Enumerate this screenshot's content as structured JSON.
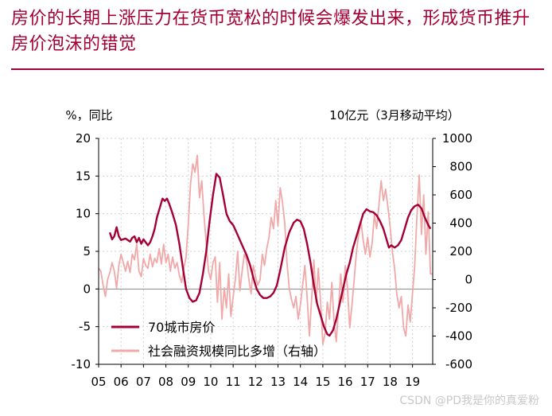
{
  "title": "房价的长期上涨压力在货币宽松的时候会爆发出来，形成货币推升房价泡沫的错觉",
  "watermark": "CSDN @PD我是你的真爱粉",
  "chart_data": {
    "type": "line",
    "left_axis_label": "%，同比",
    "right_axis_label": "10亿元（3月移动平均）",
    "x_ticks": [
      "05",
      "06",
      "07",
      "08",
      "09",
      "10",
      "11",
      "12",
      "13",
      "14",
      "15",
      "16",
      "17",
      "18",
      "19"
    ],
    "x_range": [
      2005.0,
      2019.9
    ],
    "ylim_left": [
      -10,
      20
    ],
    "ylim_right": [
      -600,
      1000
    ],
    "yticks_left": [
      20,
      15,
      10,
      5,
      0,
      -5,
      -10
    ],
    "yticks_right": [
      1000,
      800,
      600,
      400,
      200,
      0,
      -200,
      -400,
      -600
    ],
    "grid": "dotted vertical and horizontal",
    "legend": "lower-left",
    "colors": {
      "series1": "#a50034",
      "series2": "#f0a8a8"
    },
    "series": [
      {
        "name": "70城市房价",
        "axis": "left",
        "points": [
          [
            2005.5,
            7.5
          ],
          [
            2005.6,
            6.6
          ],
          [
            2005.7,
            7.0
          ],
          [
            2005.8,
            8.2
          ],
          [
            2005.9,
            7.0
          ],
          [
            2006.0,
            6.5
          ],
          [
            2006.2,
            6.7
          ],
          [
            2006.4,
            6.3
          ],
          [
            2006.5,
            6.8
          ],
          [
            2006.6,
            7.0
          ],
          [
            2006.7,
            6.2
          ],
          [
            2006.8,
            6.8
          ],
          [
            2006.9,
            6.0
          ],
          [
            2007.0,
            6.6
          ],
          [
            2007.1,
            6.2
          ],
          [
            2007.2,
            5.8
          ],
          [
            2007.3,
            6.2
          ],
          [
            2007.4,
            7.0
          ],
          [
            2007.5,
            8.0
          ],
          [
            2007.6,
            9.5
          ],
          [
            2007.75,
            11.0
          ],
          [
            2007.85,
            12.0
          ],
          [
            2007.95,
            11.7
          ],
          [
            2008.05,
            12.0
          ],
          [
            2008.15,
            11.3
          ],
          [
            2008.3,
            10.0
          ],
          [
            2008.45,
            8.5
          ],
          [
            2008.6,
            6.0
          ],
          [
            2008.75,
            3.0
          ],
          [
            2008.9,
            0.0
          ],
          [
            2009.05,
            -1.2
          ],
          [
            2009.2,
            -1.7
          ],
          [
            2009.35,
            -1.5
          ],
          [
            2009.5,
            -0.5
          ],
          [
            2009.65,
            2.0
          ],
          [
            2009.8,
            5.0
          ],
          [
            2009.95,
            9.0
          ],
          [
            2010.1,
            12.5
          ],
          [
            2010.25,
            15.3
          ],
          [
            2010.4,
            14.8
          ],
          [
            2010.55,
            12.5
          ],
          [
            2010.7,
            10.0
          ],
          [
            2010.85,
            9.0
          ],
          [
            2011.0,
            8.5
          ],
          [
            2011.15,
            7.5
          ],
          [
            2011.3,
            6.5
          ],
          [
            2011.45,
            5.5
          ],
          [
            2011.6,
            4.5
          ],
          [
            2011.75,
            3.2
          ],
          [
            2011.9,
            1.5
          ],
          [
            2012.05,
            0.0
          ],
          [
            2012.2,
            -0.8
          ],
          [
            2012.35,
            -1.2
          ],
          [
            2012.5,
            -1.2
          ],
          [
            2012.65,
            -1.0
          ],
          [
            2012.8,
            -0.5
          ],
          [
            2012.95,
            0.5
          ],
          [
            2013.1,
            2.5
          ],
          [
            2013.3,
            5.5
          ],
          [
            2013.5,
            7.5
          ],
          [
            2013.7,
            8.8
          ],
          [
            2013.85,
            9.2
          ],
          [
            2014.0,
            9.0
          ],
          [
            2014.15,
            8.0
          ],
          [
            2014.3,
            6.0
          ],
          [
            2014.45,
            3.5
          ],
          [
            2014.6,
            0.5
          ],
          [
            2014.75,
            -2.0
          ],
          [
            2014.9,
            -3.5
          ],
          [
            2015.05,
            -5.0
          ],
          [
            2015.2,
            -6.0
          ],
          [
            2015.3,
            -6.2
          ],
          [
            2015.45,
            -5.5
          ],
          [
            2015.6,
            -4.0
          ],
          [
            2015.75,
            -2.0
          ],
          [
            2015.9,
            0.0
          ],
          [
            2016.05,
            2.0
          ],
          [
            2016.2,
            3.5
          ],
          [
            2016.35,
            5.5
          ],
          [
            2016.5,
            7.0
          ],
          [
            2016.65,
            8.5
          ],
          [
            2016.8,
            10.0
          ],
          [
            2016.95,
            10.6
          ],
          [
            2017.1,
            10.3
          ],
          [
            2017.25,
            10.2
          ],
          [
            2017.4,
            9.8
          ],
          [
            2017.55,
            9.0
          ],
          [
            2017.7,
            8.0
          ],
          [
            2017.85,
            6.5
          ],
          [
            2017.95,
            5.5
          ],
          [
            2018.05,
            5.8
          ],
          [
            2018.2,
            5.5
          ],
          [
            2018.35,
            5.8
          ],
          [
            2018.5,
            6.5
          ],
          [
            2018.65,
            8.0
          ],
          [
            2018.8,
            9.5
          ],
          [
            2018.95,
            10.5
          ],
          [
            2019.1,
            11.0
          ],
          [
            2019.25,
            11.2
          ],
          [
            2019.4,
            10.7
          ],
          [
            2019.55,
            9.5
          ],
          [
            2019.7,
            8.5
          ],
          [
            2019.8,
            8.0
          ]
        ]
      },
      {
        "name": "社会融资规模同比多增（右轴）",
        "axis": "right",
        "points": [
          [
            2005.0,
            80
          ],
          [
            2005.1,
            60
          ],
          [
            2005.2,
            -40
          ],
          [
            2005.3,
            -120
          ],
          [
            2005.4,
            0
          ],
          [
            2005.5,
            50
          ],
          [
            2005.6,
            120
          ],
          [
            2005.7,
            60
          ],
          [
            2005.8,
            -60
          ],
          [
            2005.9,
            100
          ],
          [
            2006.0,
            180
          ],
          [
            2006.1,
            120
          ],
          [
            2006.2,
            60
          ],
          [
            2006.3,
            130
          ],
          [
            2006.4,
            50
          ],
          [
            2006.5,
            180
          ],
          [
            2006.6,
            140
          ],
          [
            2006.7,
            250
          ],
          [
            2006.8,
            60
          ],
          [
            2006.9,
            20
          ],
          [
            2007.0,
            150
          ],
          [
            2007.1,
            100
          ],
          [
            2007.2,
            80
          ],
          [
            2007.3,
            180
          ],
          [
            2007.4,
            90
          ],
          [
            2007.5,
            150
          ],
          [
            2007.6,
            120
          ],
          [
            2007.7,
            220
          ],
          [
            2007.8,
            110
          ],
          [
            2007.9,
            250
          ],
          [
            2008.0,
            120
          ],
          [
            2008.1,
            180
          ],
          [
            2008.2,
            60
          ],
          [
            2008.3,
            160
          ],
          [
            2008.4,
            80
          ],
          [
            2008.5,
            120
          ],
          [
            2008.6,
            30
          ],
          [
            2008.7,
            -20
          ],
          [
            2008.8,
            80
          ],
          [
            2008.9,
            160
          ],
          [
            2009.0,
            400
          ],
          [
            2009.1,
            680
          ],
          [
            2009.2,
            820
          ],
          [
            2009.3,
            760
          ],
          [
            2009.4,
            880
          ],
          [
            2009.5,
            580
          ],
          [
            2009.6,
            700
          ],
          [
            2009.7,
            450
          ],
          [
            2009.8,
            260
          ],
          [
            2009.9,
            60
          ],
          [
            2010.0,
            0
          ],
          [
            2010.1,
            120
          ],
          [
            2010.2,
            160
          ],
          [
            2010.3,
            -160
          ],
          [
            2010.4,
            120
          ],
          [
            2010.5,
            -280
          ],
          [
            2010.6,
            -60
          ],
          [
            2010.7,
            -200
          ],
          [
            2010.8,
            40
          ],
          [
            2010.9,
            -260
          ],
          [
            2011.0,
            -120
          ],
          [
            2011.1,
            0
          ],
          [
            2011.2,
            200
          ],
          [
            2011.3,
            -80
          ],
          [
            2011.4,
            60
          ],
          [
            2011.5,
            180
          ],
          [
            2011.6,
            140
          ],
          [
            2011.7,
            0
          ],
          [
            2011.8,
            -100
          ],
          [
            2011.9,
            100
          ],
          [
            2012.0,
            20
          ],
          [
            2012.1,
            -40
          ],
          [
            2012.2,
            0
          ],
          [
            2012.3,
            180
          ],
          [
            2012.4,
            100
          ],
          [
            2012.5,
            220
          ],
          [
            2012.6,
            300
          ],
          [
            2012.7,
            440
          ],
          [
            2012.8,
            360
          ],
          [
            2012.9,
            560
          ],
          [
            2013.0,
            380
          ],
          [
            2013.1,
            650
          ],
          [
            2013.2,
            550
          ],
          [
            2013.3,
            400
          ],
          [
            2013.4,
            120
          ],
          [
            2013.5,
            -60
          ],
          [
            2013.6,
            -140
          ],
          [
            2013.7,
            -200
          ],
          [
            2013.8,
            -120
          ],
          [
            2013.9,
            -280
          ],
          [
            2014.0,
            -180
          ],
          [
            2014.1,
            -40
          ],
          [
            2014.2,
            100
          ],
          [
            2014.3,
            -120
          ],
          [
            2014.4,
            -400
          ],
          [
            2014.5,
            -140
          ],
          [
            2014.6,
            140
          ],
          [
            2014.7,
            -160
          ],
          [
            2014.8,
            80
          ],
          [
            2014.9,
            -160
          ],
          [
            2015.0,
            -460
          ],
          [
            2015.1,
            -380
          ],
          [
            2015.2,
            -160
          ],
          [
            2015.3,
            -280
          ],
          [
            2015.4,
            -20
          ],
          [
            2015.5,
            -300
          ],
          [
            2015.6,
            -440
          ],
          [
            2015.7,
            -200
          ],
          [
            2015.8,
            40
          ],
          [
            2015.9,
            -160
          ],
          [
            2016.0,
            100
          ],
          [
            2016.1,
            -60
          ],
          [
            2016.2,
            -340
          ],
          [
            2016.3,
            -180
          ],
          [
            2016.4,
            0
          ],
          [
            2016.5,
            200
          ],
          [
            2016.6,
            320
          ],
          [
            2016.7,
            420
          ],
          [
            2016.8,
            280
          ],
          [
            2016.9,
            180
          ],
          [
            2017.0,
            300
          ],
          [
            2017.1,
            160
          ],
          [
            2017.2,
            260
          ],
          [
            2017.3,
            460
          ],
          [
            2017.4,
            360
          ],
          [
            2017.5,
            520
          ],
          [
            2017.6,
            700
          ],
          [
            2017.7,
            560
          ],
          [
            2017.8,
            640
          ],
          [
            2017.9,
            520
          ],
          [
            2018.0,
            380
          ],
          [
            2018.1,
            200
          ],
          [
            2018.2,
            80
          ],
          [
            2018.3,
            -100
          ],
          [
            2018.4,
            -200
          ],
          [
            2018.5,
            -120
          ],
          [
            2018.6,
            -340
          ],
          [
            2018.7,
            -400
          ],
          [
            2018.8,
            -180
          ],
          [
            2018.9,
            -300
          ],
          [
            2019.0,
            -100
          ],
          [
            2019.1,
            100
          ],
          [
            2019.2,
            460
          ],
          [
            2019.3,
            740
          ],
          [
            2019.4,
            320
          ],
          [
            2019.5,
            600
          ],
          [
            2019.6,
            180
          ],
          [
            2019.7,
            480
          ],
          [
            2019.8,
            40
          ],
          [
            2019.9,
            40
          ]
        ]
      }
    ]
  }
}
